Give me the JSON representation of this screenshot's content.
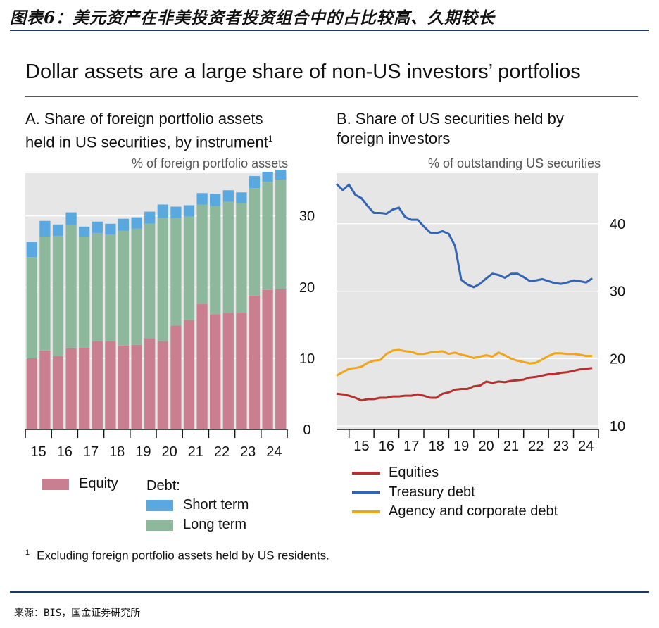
{
  "caption": "图表6：美元资产在非美投资者投资组合中的占比较高、久期较长",
  "main_title": "Dollar assets are a large share of non-US investors’ portfolios",
  "panelA": {
    "title_line1": "A. Share of foreign portfolio assets",
    "title_line2": "held in US securities, by instrument",
    "title_sup": "1",
    "unit": "% of foreign portfolio assets",
    "legend": {
      "equity": "Equity",
      "debt_heading": "Debt:",
      "short_term": "Short term",
      "long_term": "Long term"
    }
  },
  "panelB": {
    "title_line1": "B. Share of US securities held by",
    "title_line2": "foreign investors",
    "unit": "% of outstanding US securities",
    "legend": {
      "equities": "Equities",
      "treasury": "Treasury debt",
      "agency": "Agency and corporate debt"
    }
  },
  "footnote_mark": "1",
  "footnote": "Excluding foreign portfolio assets held by US residents.",
  "source": "来源：BIS，国金证券研究所",
  "colors": {
    "equity": "#c97f8f",
    "long_term": "#8db89c",
    "short_term": "#5aa8e0",
    "equities_line": "#b3322f",
    "treasury_line": "#3464b4",
    "agency_line": "#f0a520",
    "plot_bg": "#e6e6e6",
    "grid": "#ffffff"
  },
  "chart_data": [
    {
      "type": "bar",
      "stacked": true,
      "title": "A. Share of foreign portfolio assets held in US securities, by instrument",
      "ylabel": "% of foreign portfolio assets",
      "ylim": [
        0,
        36
      ],
      "yticks": [
        0,
        10,
        20,
        30
      ],
      "xtick_labels": [
        "15",
        "16",
        "17",
        "18",
        "19",
        "20",
        "21",
        "22",
        "23",
        "24"
      ],
      "categories": [
        "2014H2",
        "2015H1",
        "2015H2",
        "2016H1",
        "2016H2",
        "2017H1",
        "2017H2",
        "2018H1",
        "2018H2",
        "2019H1",
        "2019H2",
        "2020H1",
        "2020H2",
        "2021H1",
        "2021H2",
        "2022H1",
        "2022H2",
        "2023H1",
        "2023H2",
        "2024H1"
      ],
      "series": [
        {
          "name": "Equity",
          "values": [
            10.0,
            11.1,
            10.3,
            11.4,
            11.5,
            12.4,
            12.4,
            11.8,
            11.9,
            12.8,
            12.4,
            14.6,
            15.4,
            17.6,
            16.2,
            16.4,
            16.4,
            18.8,
            19.6,
            19.7
          ]
        },
        {
          "name": "Long term",
          "values": [
            14.2,
            16.0,
            16.9,
            17.3,
            15.6,
            15.2,
            15.0,
            16.1,
            16.3,
            16.1,
            17.3,
            15.1,
            14.5,
            14.0,
            15.2,
            15.6,
            15.4,
            15.1,
            15.2,
            15.4
          ]
        },
        {
          "name": "Short term",
          "values": [
            2.1,
            2.2,
            1.6,
            1.8,
            1.4,
            1.6,
            1.5,
            1.7,
            1.6,
            1.7,
            1.9,
            1.6,
            1.6,
            1.6,
            1.7,
            1.6,
            1.5,
            1.7,
            1.4,
            1.4
          ]
        }
      ]
    },
    {
      "type": "line",
      "title": "B. Share of US securities held by foreign investors",
      "ylabel": "% of outstanding US securities",
      "ylim": [
        9.5,
        47.5
      ],
      "yticks": [
        10,
        20,
        30,
        40
      ],
      "xlim": [
        2014.5,
        2025.0
      ],
      "xtick_labels": [
        "15",
        "16",
        "17",
        "18",
        "19",
        "20",
        "21",
        "22",
        "23",
        "24"
      ],
      "x": [
        2014.5,
        2014.75,
        2015.0,
        2015.25,
        2015.5,
        2015.75,
        2016.0,
        2016.25,
        2016.5,
        2016.75,
        2017.0,
        2017.25,
        2017.5,
        2017.75,
        2018.0,
        2018.25,
        2018.5,
        2018.75,
        2019.0,
        2019.25,
        2019.5,
        2019.75,
        2020.0,
        2020.25,
        2020.5,
        2020.75,
        2021.0,
        2021.25,
        2021.5,
        2021.75,
        2022.0,
        2022.25,
        2022.5,
        2022.75,
        2023.0,
        2023.25,
        2023.5,
        2023.75,
        2024.0,
        2024.25,
        2024.5,
        2024.75
      ],
      "series": [
        {
          "name": "Equities",
          "values": [
            14.8,
            14.7,
            14.5,
            14.2,
            13.8,
            14.0,
            14.0,
            14.2,
            14.2,
            14.4,
            14.4,
            14.5,
            14.5,
            14.7,
            14.5,
            14.2,
            14.2,
            14.8,
            15.0,
            15.4,
            15.5,
            15.5,
            15.9,
            16.0,
            16.6,
            16.4,
            16.6,
            16.5,
            16.7,
            16.8,
            16.9,
            17.2,
            17.3,
            17.5,
            17.7,
            17.7,
            17.9,
            18.0,
            18.2,
            18.4,
            18.5,
            18.6
          ]
        },
        {
          "name": "Treasury debt",
          "values": [
            45.9,
            45.0,
            45.8,
            44.3,
            43.8,
            42.6,
            41.6,
            41.6,
            41.5,
            42.1,
            42.4,
            41.0,
            40.6,
            40.6,
            39.6,
            38.7,
            38.6,
            38.9,
            38.5,
            36.7,
            31.7,
            31.0,
            30.6,
            31.1,
            31.9,
            32.6,
            32.4,
            32.0,
            32.6,
            32.6,
            32.1,
            31.5,
            31.6,
            31.8,
            31.5,
            31.2,
            31.1,
            31.3,
            31.6,
            31.5,
            31.3,
            31.9
          ]
        },
        {
          "name": "Agency and corporate debt",
          "values": [
            17.5,
            18.0,
            18.5,
            18.6,
            18.8,
            19.4,
            19.7,
            19.8,
            20.7,
            21.2,
            21.3,
            21.1,
            21.0,
            20.7,
            20.7,
            20.9,
            21.0,
            21.1,
            20.7,
            20.9,
            20.6,
            20.4,
            20.1,
            20.3,
            20.5,
            20.3,
            20.9,
            20.5,
            20.0,
            19.7,
            19.5,
            19.3,
            19.4,
            19.9,
            20.4,
            20.8,
            20.8,
            20.7,
            20.7,
            20.6,
            20.4,
            20.4
          ]
        }
      ]
    }
  ]
}
